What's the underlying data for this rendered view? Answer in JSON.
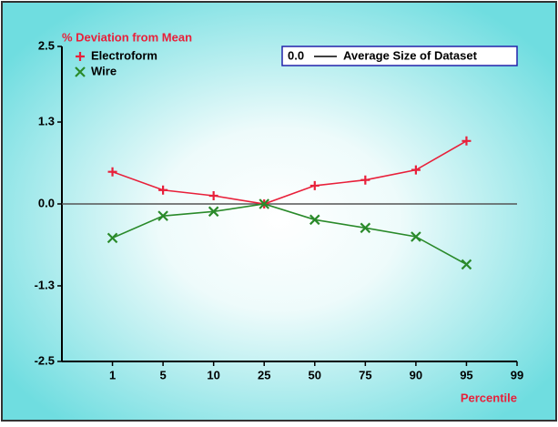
{
  "chart_data": {
    "type": "line",
    "y_label": "% Deviation from Mean",
    "x_label": "Percentile",
    "annotation": {
      "value_text": "0.0",
      "text": "Average Size of Dataset"
    },
    "categories": [
      "1",
      "5",
      "10",
      "25",
      "50",
      "75",
      "90",
      "95",
      "99"
    ],
    "series": [
      {
        "name": "Electroform",
        "color": "#e8203a",
        "marker": "+",
        "values": [
          0.51,
          0.22,
          0.13,
          0.0,
          0.29,
          0.38,
          0.54,
          1.0,
          null
        ]
      },
      {
        "name": "Wire",
        "color": "#2a8a2a",
        "marker": "x",
        "values": [
          -0.54,
          -0.19,
          -0.12,
          0.0,
          -0.25,
          -0.38,
          -0.52,
          -0.96,
          null
        ]
      }
    ],
    "ylim": [
      -2.5,
      2.5
    ],
    "yticks": [
      -2.5,
      -1.3,
      {
        "value": 0,
        "label": "0.0"
      },
      1.3,
      2.5
    ],
    "legend": "top-left"
  }
}
